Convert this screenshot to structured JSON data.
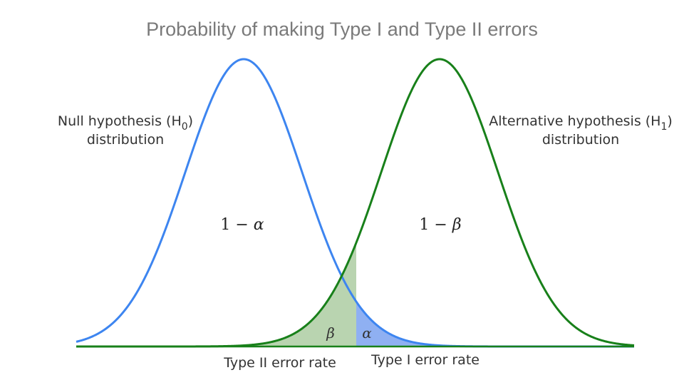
{
  "title": "Probability of making Type I and Type II errors",
  "null_label": {
    "line1_prefix": "Null hypothesis (H",
    "line1_subscript": "0",
    "line1_suffix": ")",
    "line2": "distribution"
  },
  "alt_label": {
    "line1_prefix": "Alternative hypothesis (H",
    "line1_subscript": "1",
    "line1_suffix": ")",
    "line2": "distribution"
  },
  "regions": {
    "one_minus_alpha": {
      "prefix": "1 − ",
      "symbol": "α"
    },
    "one_minus_beta": {
      "prefix": "1 − ",
      "symbol": "β"
    },
    "beta_symbol": "β",
    "alpha_symbol": "α"
  },
  "bottom_labels": {
    "type_two": "Type II error rate",
    "type_one": "Type I error rate"
  },
  "colors": {
    "null_curve": "#3d85f0",
    "alt_curve": "#18801a",
    "beta_fill": "#b9d4b0",
    "alpha_fill": "#8fb0f2",
    "baseline": "#18801a",
    "cutoff_line": "#b9d4b0"
  }
}
